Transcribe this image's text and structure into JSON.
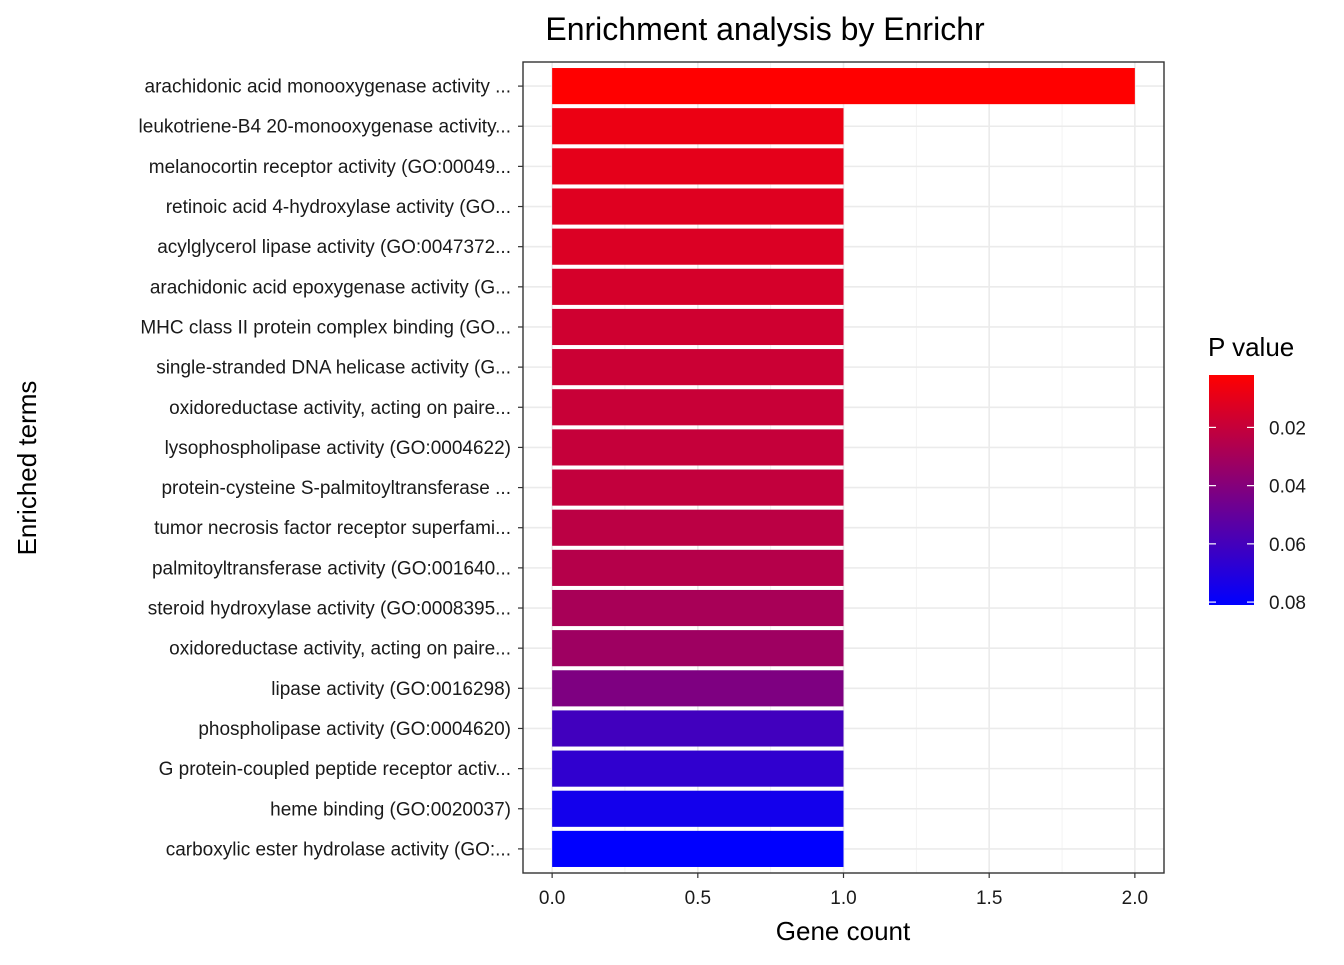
{
  "chart_data": {
    "type": "bar",
    "orientation": "horizontal",
    "title": "Enrichment analysis by Enrichr",
    "xlabel": "Gene count",
    "ylabel": "Enriched terms",
    "xlim": [
      -0.1,
      2.1
    ],
    "x_ticks": [
      "0.0",
      "0.5",
      "1.0",
      "1.5",
      "2.0"
    ],
    "x_tick_values": [
      0,
      0.5,
      1.0,
      1.5,
      2.0
    ],
    "grid": true,
    "legend": {
      "title": "P value",
      "placement": "right",
      "range": [
        0.002,
        0.081
      ],
      "ticks": [
        "0.02",
        "0.04",
        "0.06",
        "0.08"
      ],
      "tick_values": [
        0.02,
        0.04,
        0.06,
        0.08
      ],
      "low_color": "#ff0000",
      "high_color": "#0000ff"
    },
    "categories": [
      "arachidonic acid monooxygenase activity ...",
      "leukotriene-B4 20-monooxygenase activity...",
      "melanocortin receptor activity (GO:00049...",
      "retinoic acid 4-hydroxylase activity (GO...",
      "acylglycerol lipase activity (GO:0047372...",
      "arachidonic acid epoxygenase activity (G...",
      "MHC class II protein complex binding (GO...",
      "single-stranded DNA helicase activity (G...",
      "oxidoreductase activity, acting on paire...",
      "lysophospholipase activity (GO:0004622)",
      "protein-cysteine S-palmitoyltransferase ...",
      "tumor necrosis factor receptor superfami...",
      "palmitoyltransferase activity (GO:001640...",
      "steroid hydroxylase activity (GO:0008395...",
      "oxidoreductase activity, acting on paire...",
      "lipase activity (GO:0016298)",
      "phospholipase activity (GO:0004620)",
      "G protein-coupled peptide receptor activ...",
      "heme binding (GO:0020037)",
      "carboxylic ester hydrolase activity (GO:..."
    ],
    "values": [
      2,
      1,
      1,
      1,
      1,
      1,
      1,
      1,
      1,
      1,
      1,
      1,
      1,
      1,
      1,
      1,
      1,
      1,
      1,
      1
    ],
    "p_values": [
      0.002,
      0.008,
      0.01,
      0.012,
      0.013,
      0.015,
      0.017,
      0.018,
      0.019,
      0.02,
      0.021,
      0.023,
      0.025,
      0.029,
      0.032,
      0.042,
      0.061,
      0.066,
      0.075,
      0.081
    ]
  }
}
